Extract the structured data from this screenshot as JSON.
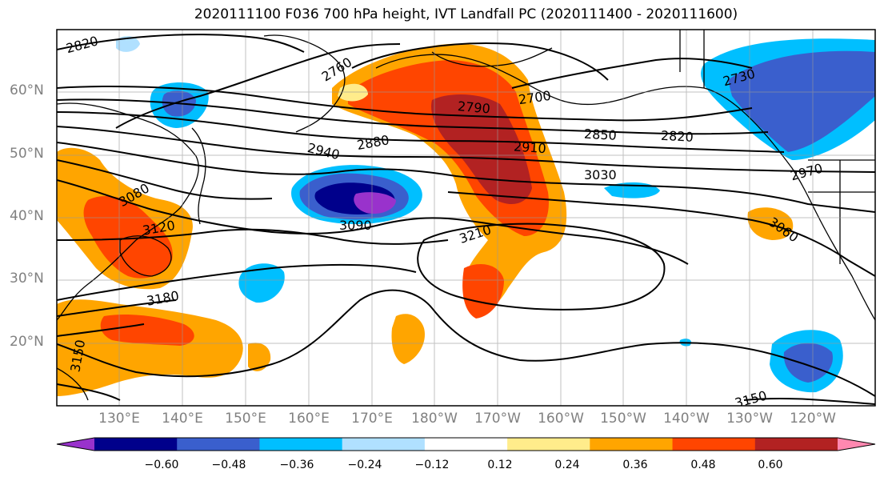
{
  "title": "2020111100 F036 700 hPa height, IVT Landfall PC (2020111400 - 2020111600)",
  "lat_labels": [
    "60°N",
    "50°N",
    "40°N",
    "30°N",
    "20°N"
  ],
  "lon_labels": [
    "130°E",
    "140°E",
    "150°E",
    "160°E",
    "170°E",
    "180°W",
    "170°W",
    "160°W",
    "150°W",
    "140°W",
    "130°W",
    "120°W"
  ],
  "contour_labels": [
    "2820",
    "2760",
    "2700",
    "2730",
    "2790",
    "2880",
    "2850",
    "2820",
    "2940",
    "2910",
    "3030",
    "2970",
    "3080",
    "3120",
    "3090",
    "3210",
    "3060",
    "3180",
    "3150",
    "3150"
  ],
  "colorbar": {
    "ticks": [
      "−0.60",
      "−0.48",
      "−0.36",
      "−0.24",
      "−0.12",
      "0.12",
      "0.24",
      "0.36",
      "0.48",
      "0.60"
    ],
    "colors": [
      "#9932cc",
      "#00008b",
      "#3a5fcd",
      "#00bfff",
      "#b0e0ff",
      "#ffffff",
      "#ffec8b",
      "#ffa500",
      "#ff4500",
      "#b22222",
      "#ff88b0"
    ]
  }
}
